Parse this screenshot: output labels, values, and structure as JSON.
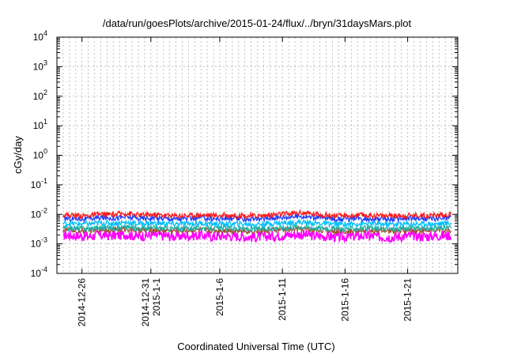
{
  "chart_data": {
    "type": "line",
    "title": "/data/run/goesPlots/archive/2015-01-24/flux/../bryn/31daysMars.plot",
    "xlabel": "Coordinated Universal Time (UTC)",
    "ylabel": "cGy/day",
    "y_scale": "log",
    "ylim": [
      0.0001,
      10000
    ],
    "y_ticks": [
      {
        "base": "10",
        "exp": "-4"
      },
      {
        "base": "10",
        "exp": "-3"
      },
      {
        "base": "10",
        "exp": "-2"
      },
      {
        "base": "10",
        "exp": "-1"
      },
      {
        "base": "10",
        "exp": "0"
      },
      {
        "base": "10",
        "exp": "1"
      },
      {
        "base": "10",
        "exp": "2"
      },
      {
        "base": "10",
        "exp": "3"
      },
      {
        "base": "10",
        "exp": "4"
      }
    ],
    "xlim": [
      "2014-12-24",
      "2015-01-25"
    ],
    "x_tick_labels": [
      {
        "lines": [
          "2014-12-26"
        ],
        "date": "2014-12-26"
      },
      {
        "lines": [
          "2014-12-31",
          "2015-1-1"
        ],
        "date": "2014-12-31T12:00"
      },
      {
        "lines": [
          "2015-1-6"
        ],
        "date": "2015-01-06"
      },
      {
        "lines": [
          "2015-1-11"
        ],
        "date": "2015-01-11"
      },
      {
        "lines": [
          "2015-1-16"
        ],
        "date": "2015-01-16"
      },
      {
        "lines": [
          "2015-1-21"
        ],
        "date": "2015-01-21"
      }
    ],
    "grid": true,
    "legend": "none",
    "series": [
      {
        "color": "#ff00ff",
        "values": [
          0.002,
          0.0019,
          0.0018,
          0.002,
          0.0019,
          0.0021,
          0.0018,
          0.002,
          0.0019,
          0.0018,
          0.0019,
          0.002,
          0.0018,
          0.0019,
          0.0018,
          0.0017,
          0.0018,
          0.0019,
          0.002,
          0.0021,
          0.0019,
          0.0018,
          0.0017,
          0.0018,
          0.0019,
          0.0018,
          0.0017,
          0.0018,
          0.0019,
          0.0018,
          0.0019,
          0.002
        ]
      },
      {
        "color": "#a0522d",
        "values": [
          0.003,
          0.0029,
          0.0028,
          0.0031,
          0.003,
          0.0032,
          0.0029,
          0.003,
          0.0029,
          0.0028,
          0.0029,
          0.003,
          0.0028,
          0.0029,
          0.0028,
          0.0027,
          0.0028,
          0.003,
          0.0031,
          0.0032,
          0.003,
          0.0029,
          0.0027,
          0.0028,
          0.0029,
          0.0028,
          0.0027,
          0.0028,
          0.0029,
          0.0028,
          0.0029,
          0.003
        ]
      },
      {
        "color": "#20b2aa",
        "values": [
          0.0035,
          0.0034,
          0.0033,
          0.0036,
          0.0035,
          0.0037,
          0.0034,
          0.0035,
          0.0034,
          0.0033,
          0.0034,
          0.0035,
          0.0033,
          0.0034,
          0.0033,
          0.0032,
          0.0033,
          0.0035,
          0.0036,
          0.0038,
          0.0035,
          0.0034,
          0.0032,
          0.0033,
          0.0034,
          0.0033,
          0.0032,
          0.0033,
          0.0034,
          0.0033,
          0.0034,
          0.0036
        ]
      },
      {
        "color": "#00bfff",
        "values": [
          0.005,
          0.0048,
          0.0047,
          0.0051,
          0.005,
          0.0053,
          0.0048,
          0.005,
          0.0049,
          0.0047,
          0.0048,
          0.005,
          0.0047,
          0.0048,
          0.0047,
          0.0046,
          0.0047,
          0.005,
          0.0052,
          0.0054,
          0.005,
          0.0048,
          0.0046,
          0.0047,
          0.0048,
          0.0047,
          0.0046,
          0.0047,
          0.0048,
          0.0047,
          0.0048,
          0.0051
        ]
      },
      {
        "color": "#2040ff",
        "values": [
          0.0075,
          0.0072,
          0.007,
          0.0078,
          0.0075,
          0.0082,
          0.0073,
          0.0076,
          0.0074,
          0.007,
          0.0072,
          0.0076,
          0.0071,
          0.0073,
          0.0071,
          0.0069,
          0.0071,
          0.0078,
          0.0082,
          0.0088,
          0.008,
          0.0075,
          0.0069,
          0.007,
          0.0073,
          0.0071,
          0.0069,
          0.0071,
          0.0073,
          0.0071,
          0.0073,
          0.0078
        ]
      },
      {
        "color": "#ff1a1a",
        "values": [
          0.0095,
          0.0092,
          0.009,
          0.01,
          0.0098,
          0.011,
          0.0094,
          0.0097,
          0.0095,
          0.009,
          0.0092,
          0.0097,
          0.0091,
          0.0093,
          0.0091,
          0.0088,
          0.0091,
          0.01,
          0.0105,
          0.0115,
          0.0103,
          0.0096,
          0.0088,
          0.009,
          0.0094,
          0.0091,
          0.0088,
          0.0091,
          0.0094,
          0.0091,
          0.0094,
          0.0102
        ]
      }
    ]
  }
}
